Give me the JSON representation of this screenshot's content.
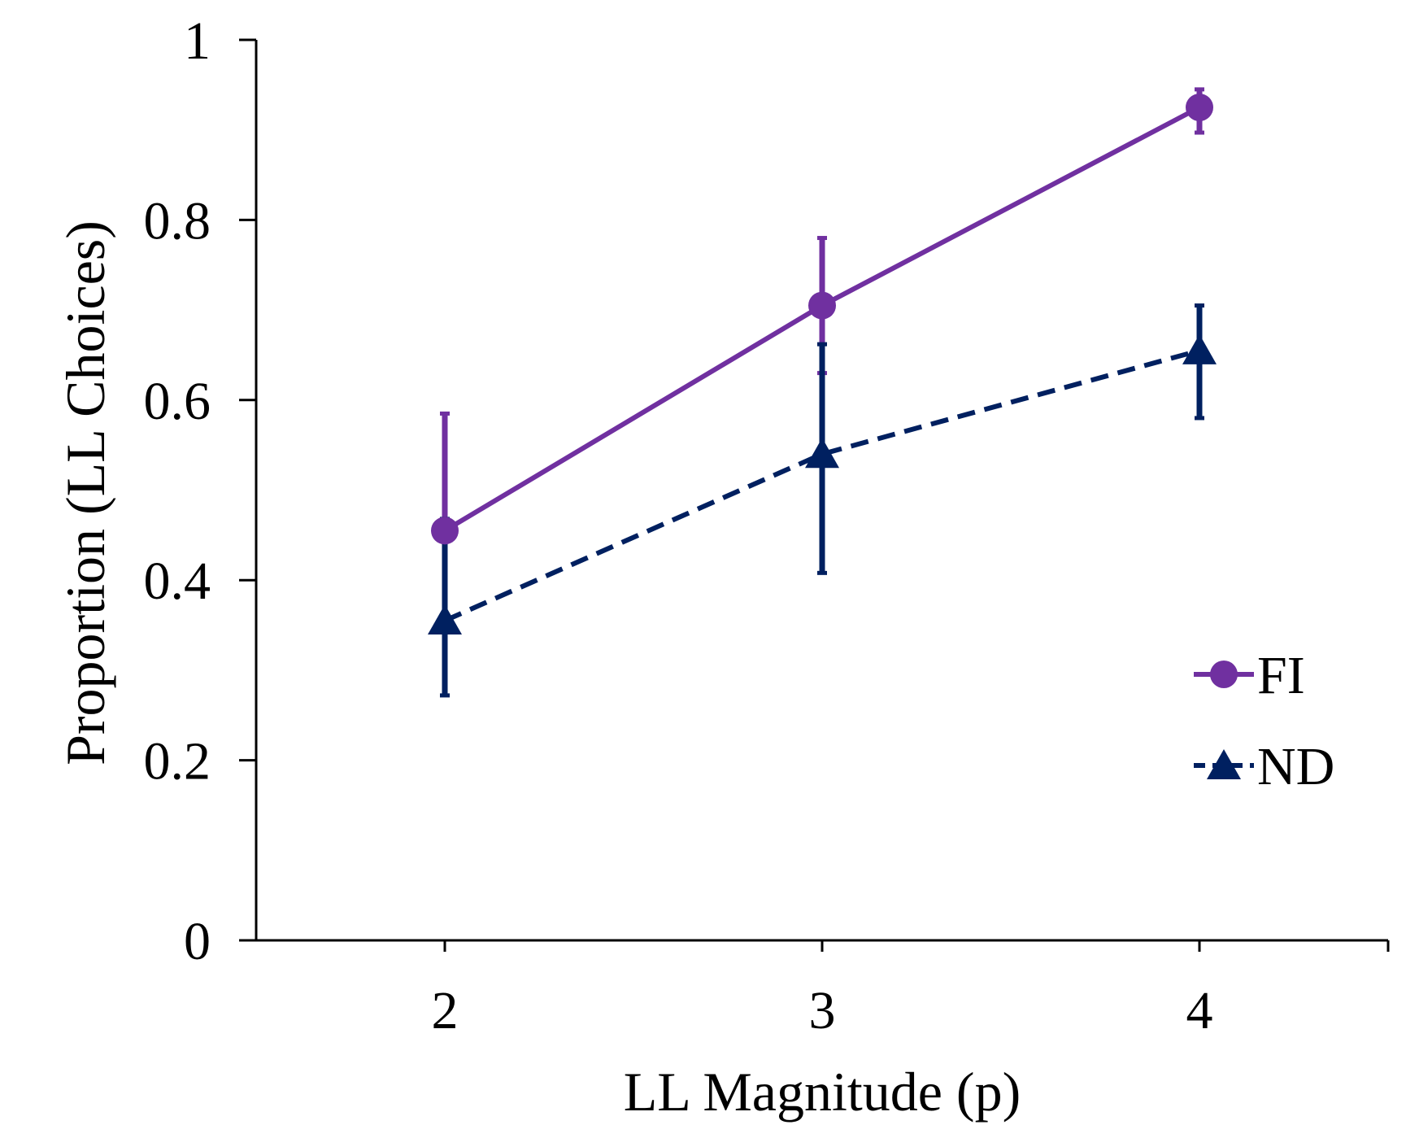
{
  "chart_data": {
    "type": "line",
    "title": "",
    "xlabel": "LL Magnitude (p)",
    "ylabel": "Proportion (LL Choices)",
    "x": [
      2,
      3,
      4
    ],
    "x_tick_labels": [
      "2",
      "3",
      "4"
    ],
    "xlim": [
      1.5,
      4.5
    ],
    "ylim": [
      0,
      1
    ],
    "y_ticks": [
      0,
      0.2,
      0.4,
      0.6,
      0.8,
      1
    ],
    "y_tick_labels": [
      "0",
      "0.2",
      "0.4",
      "0.6",
      "0.8",
      "1"
    ],
    "grid": false,
    "legend_position": "right",
    "series": [
      {
        "name": "FI",
        "values": [
          0.455,
          0.705,
          0.925
        ],
        "error_low": [
          0.455,
          0.63,
          0.897
        ],
        "error_high": [
          0.585,
          0.78,
          0.945
        ],
        "color": "#7030a0",
        "line_style": "solid",
        "marker": "circle"
      },
      {
        "name": "ND",
        "values": [
          0.355,
          0.54,
          0.655
        ],
        "error_low": [
          0.272,
          0.408,
          0.58
        ],
        "error_high": [
          0.468,
          0.662,
          0.705
        ],
        "color": "#002060",
        "line_style": "dashed",
        "marker": "triangle"
      }
    ]
  }
}
